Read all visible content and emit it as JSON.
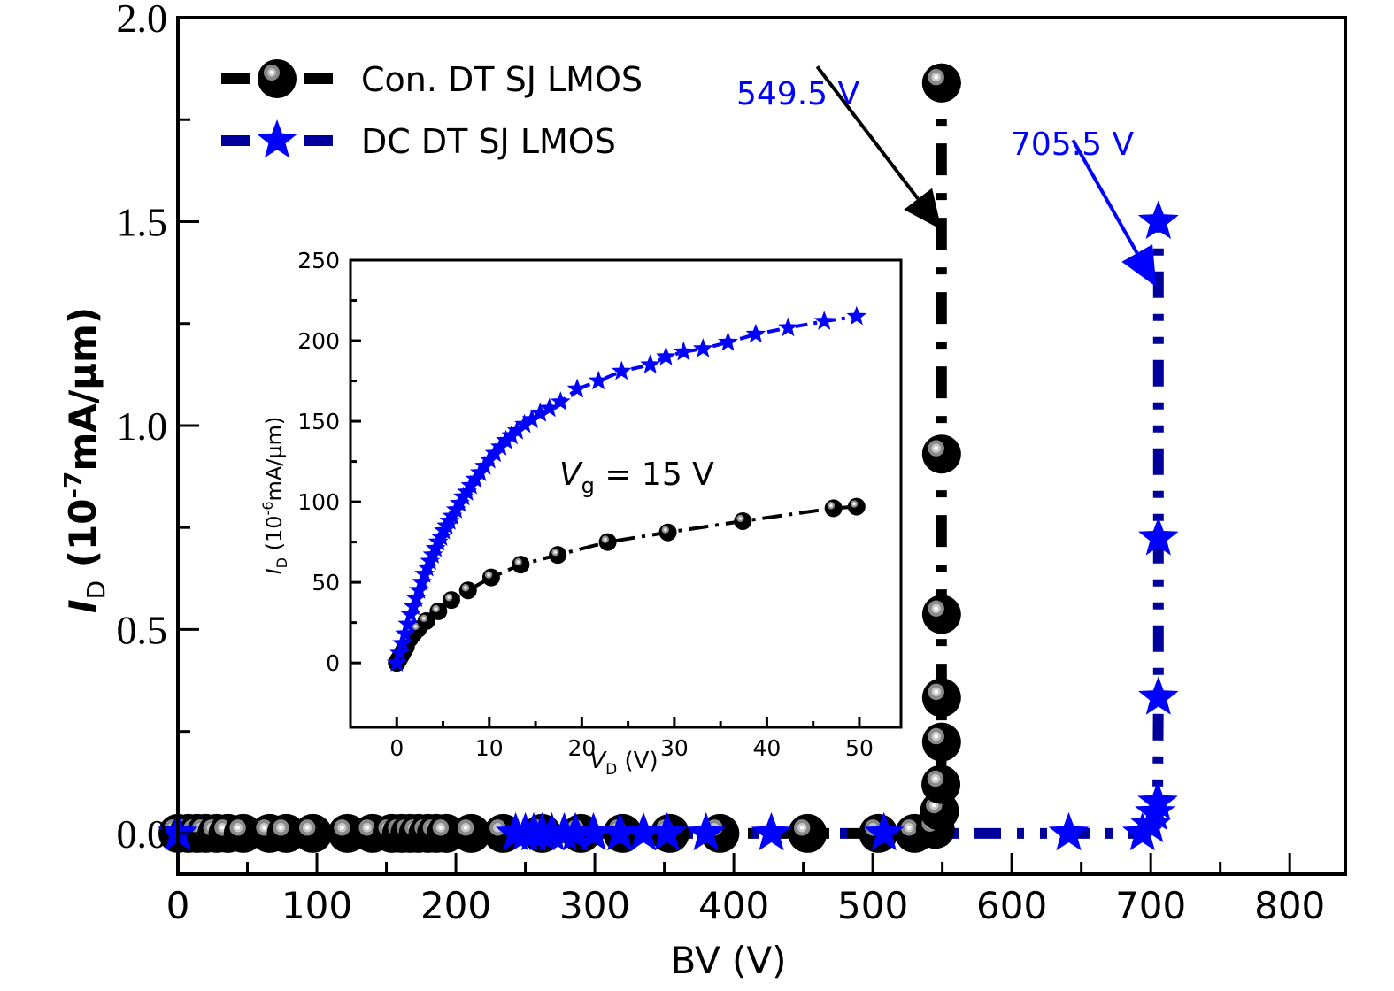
{
  "chart_data": [
    {
      "id": "main",
      "type": "scatter",
      "xlabel": "BV (V)",
      "ylabel": {
        "italic": "I",
        "sub": "D",
        "rest": " (10",
        "sup": "-7",
        "unit": "mA/µm)"
      },
      "xlim": [
        0,
        840
      ],
      "ylim": [
        -0.1,
        2.0
      ],
      "xticks": [
        0,
        100,
        200,
        300,
        400,
        500,
        600,
        700,
        800
      ],
      "xtick_labels": [
        "0",
        "100",
        "200",
        "300",
        "400",
        "500",
        "600",
        "700",
        "800"
      ],
      "xminor": [
        50,
        150,
        250,
        350,
        450,
        550,
        650,
        750
      ],
      "yticks": [
        0.0,
        0.5,
        1.0,
        1.5,
        2.0
      ],
      "ytick_labels": [
        "0.0",
        "0.5",
        "1.0",
        "1.5",
        "2.0"
      ],
      "yminor": [
        0.25,
        0.75,
        1.25,
        1.75
      ],
      "grid": false,
      "legend": {
        "placement": "top-left",
        "entries": [
          {
            "label": "Con. DT SJ LMOS",
            "series": 0
          },
          {
            "label": "DC DT SJ LMOS",
            "series": 1
          }
        ]
      },
      "series": [
        {
          "name": "Con. DT SJ LMOS",
          "marker": "sphere",
          "color": "#000000",
          "line_color": "#000000",
          "line_style": "dash-dot",
          "x": [
            0,
            7.6,
            14,
            20,
            28,
            36,
            47,
            66,
            78,
            97,
            122,
            140,
            154,
            161,
            167,
            173,
            180,
            186,
            193,
            211,
            234,
            262,
            290,
            320,
            354,
            390,
            453,
            504,
            530,
            545,
            548,
            549,
            549.5,
            549.5,
            549.5,
            549.5,
            549.5,
            549.5
          ],
          "y": [
            0,
            0,
            0,
            0,
            0,
            0,
            0,
            0,
            0,
            0,
            0,
            0,
            0,
            0,
            0,
            0,
            0,
            0,
            0,
            0,
            0,
            0,
            0,
            0,
            0,
            0,
            0,
            0,
            0,
            0.01,
            0.055,
            0.12,
            0.224,
            0.333,
            0.537,
            0.93,
            1.84,
            1.84
          ]
        },
        {
          "name": "DC DT SJ LMOS",
          "marker": "star",
          "color": "#0000ff",
          "line_color": "#00009c",
          "line_style": "dash-dot-dot",
          "x": [
            0,
            243,
            250,
            256,
            262,
            269,
            278,
            286,
            299,
            318,
            335,
            352,
            380,
            427,
            508,
            641,
            694,
            700,
            703,
            705,
            705.5,
            705.5,
            705.5,
            705.5
          ],
          "y": [
            0,
            0,
            0,
            0,
            0,
            0,
            0,
            0,
            0,
            0,
            0,
            0,
            0,
            0,
            0,
            0,
            0,
            0.02,
            0.05,
            0.076,
            0.333,
            0.724,
            1.5,
            1.5
          ]
        }
      ],
      "annotations": [
        {
          "text": "549.5 V",
          "color": "#0000ff",
          "arrow_color": "#000000",
          "from": [
            460,
            1.88
          ],
          "to": [
            549.5,
            1.48
          ]
        },
        {
          "text": "705.5 V",
          "color": "#0000ff",
          "arrow_color": "#0000ff",
          "from": [
            644,
            1.7
          ],
          "to": [
            704,
            1.34
          ]
        }
      ]
    },
    {
      "id": "inset",
      "type": "scatter",
      "xlabel": {
        "italic": "V",
        "sub": "D",
        "rest": " (V)"
      },
      "ylabel": {
        "italic": "I",
        "sub": "D",
        "rest": " (10",
        "sup": "-6",
        "unit": "mA/µm)"
      },
      "xlim": [
        -5,
        54.5
      ],
      "ylim": [
        -40,
        250
      ],
      "xticks": [
        0,
        10,
        20,
        30,
        40,
        50
      ],
      "xtick_labels": [
        "0",
        "10",
        "20",
        "30",
        "40",
        "50"
      ],
      "xminor": [
        5,
        15,
        25,
        35,
        45
      ],
      "yticks": [
        0,
        50,
        100,
        150,
        200,
        250
      ],
      "ytick_labels": [
        "0",
        "50",
        "100",
        "150",
        "200",
        "250"
      ],
      "yminor": [
        25,
        75,
        125,
        175,
        225
      ],
      "grid": false,
      "annotation": {
        "italic": "V",
        "sub": "g",
        "rest": " = 15 V"
      },
      "series": [
        {
          "name": "Con. DT SJ LMOS",
          "marker": "sphere",
          "color": "#000000",
          "x": [
            0,
            0.2,
            0.4,
            0.6,
            0.8,
            1.0,
            1.4,
            1.8,
            2.3,
            3.2,
            4.5,
            5.9,
            7.7,
            10.2,
            13.4,
            17.4,
            22.8,
            29.3,
            37.4,
            47.2,
            49.7
          ],
          "y": [
            0,
            2,
            4,
            6,
            8,
            10,
            15,
            18,
            21,
            26,
            32,
            39,
            45,
            53,
            61,
            67,
            75,
            81,
            88,
            96,
            97
          ]
        },
        {
          "name": "DC DT SJ LMOS",
          "marker": "star",
          "color": "#0000ff",
          "x": [
            0,
            0.3,
            0.6,
            0.9,
            1.2,
            1.5,
            1.8,
            2.1,
            2.4,
            2.7,
            3.0,
            3.3,
            3.6,
            3.9,
            4.2,
            4.5,
            4.8,
            5.1,
            5.4,
            5.7,
            6.0,
            6.4,
            6.8,
            7.2,
            7.6,
            8.0,
            8.5,
            9.0,
            9.5,
            10.0,
            10.6,
            11.2,
            11.8,
            12.4,
            13.0,
            13.8,
            14.6,
            15.5,
            16.5,
            17.7,
            19.5,
            21.8,
            24.3,
            27.4,
            29.1,
            31.0,
            33.1,
            35.8,
            38.8,
            42.3,
            46.2,
            49.7
          ],
          "y": [
            0,
            6,
            12,
            18,
            24,
            30,
            35,
            40,
            45,
            50,
            55,
            59,
            63,
            67,
            71,
            75,
            78,
            82,
            85,
            88,
            91,
            95,
            99,
            103,
            106,
            110,
            114,
            118,
            122,
            126,
            130,
            134,
            138,
            141,
            144,
            148,
            151,
            155,
            158,
            162,
            170,
            175,
            181,
            185,
            190,
            193,
            195,
            199,
            204,
            208,
            212,
            215
          ]
        }
      ]
    }
  ]
}
